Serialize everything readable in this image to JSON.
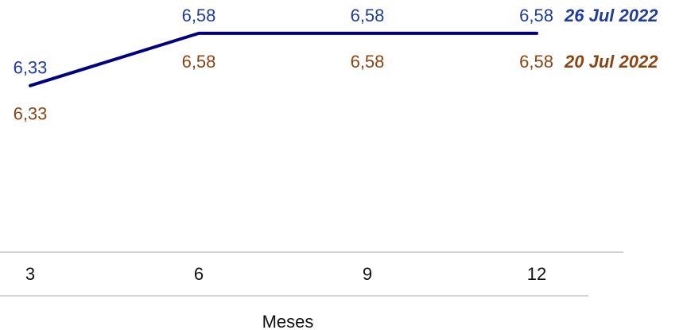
{
  "chart_data": {
    "type": "line",
    "title": "",
    "xlabel": "Meses",
    "ylabel": "",
    "x": [
      "3",
      "6",
      "9",
      "12"
    ],
    "ylim": [
      5.6,
      6.72
    ],
    "grid": false,
    "legend": "end-of-line labels",
    "series": [
      {
        "name": "20 Jul 2022",
        "values": [
          6.33,
          6.58,
          6.58,
          6.58
        ],
        "labels": [
          "6,33",
          "6,58",
          "6,58",
          "6,58"
        ],
        "color": "#8B4513"
      },
      {
        "name": "26 Jul 2022",
        "values": [
          6.33,
          6.58,
          6.58,
          6.58
        ],
        "labels": [
          "6,33",
          "6,58",
          "6,58",
          "6,58"
        ],
        "color": "#1F3D99"
      }
    ],
    "line_colors": {
      "20 Jul 2022": "#8B4513",
      "26 Jul 2022": "#000080"
    }
  }
}
